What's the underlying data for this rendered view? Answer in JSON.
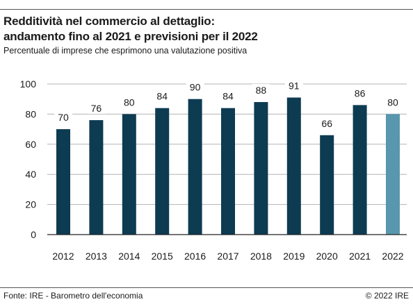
{
  "title_line1": "Redditività nel commercio al dettaglio:",
  "title_line2": "andamento fino al 2021 e previsioni per il 2022",
  "subtitle": "Percentuale di imprese che esprimono una valutazione positiva",
  "source": "Fonte: IRE - Barometro dell'economia",
  "copyright": "© 2022 IRE",
  "chart_data": {
    "type": "bar",
    "title": "Redditività nel commercio al dettaglio: andamento fino al 2021 e previsioni per il 2022",
    "subtitle": "Percentuale di imprese che esprimono una valutazione positiva",
    "categories": [
      "2012",
      "2013",
      "2014",
      "2015",
      "2016",
      "2017",
      "2018",
      "2019",
      "2020",
      "2021",
      "2022"
    ],
    "values": [
      70,
      76,
      80,
      84,
      90,
      84,
      88,
      91,
      66,
      86,
      80
    ],
    "forecast_flags": [
      false,
      false,
      false,
      false,
      false,
      false,
      false,
      false,
      false,
      false,
      true
    ],
    "ylim": [
      0,
      100
    ],
    "yticks": [
      0,
      20,
      40,
      60,
      80,
      100
    ],
    "grid": true,
    "colors": {
      "actual": "#0d3b52",
      "forecast": "#5897ad",
      "grid": "#b3b3b3",
      "axis": "#222222"
    }
  }
}
